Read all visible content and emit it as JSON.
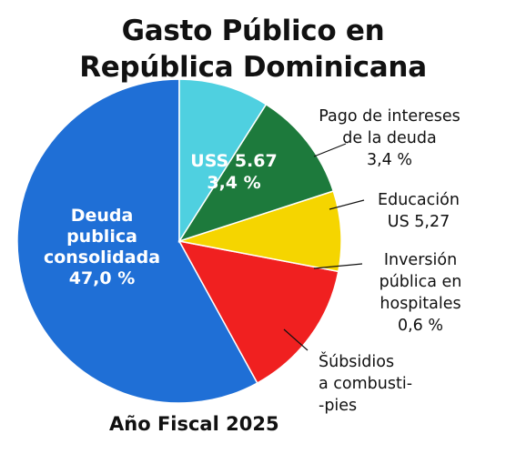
{
  "title_lines": [
    "Gasto Público en",
    "República Dominicana"
  ],
  "footer": "Año Fiscal 2025",
  "chart_data": {
    "type": "pie",
    "title": "Gasto Público en República Dominicana",
    "slices": [
      {
        "key": "deuda",
        "color": "#1f6fd6",
        "value_share": 0.58,
        "inside_label": [
          "Deuda",
          "publica",
          "consolidada",
          "47,0 %"
        ],
        "outside_label": []
      },
      {
        "key": "intereses",
        "color": "#f02020",
        "value_share": 0.14,
        "inside_label": [
          "USS 5.67",
          "3,4 %"
        ],
        "outside_label": [
          "Pago de intereses",
          "de la deuda",
          "3,4 %"
        ]
      },
      {
        "key": "educacion",
        "color": "#f5d500",
        "value_share": 0.08,
        "inside_label": [],
        "outside_label": [
          "Educación",
          "US 5,27"
        ]
      },
      {
        "key": "inversion",
        "color": "#1d7a3c",
        "value_share": 0.11,
        "inside_label": [],
        "outside_label": [
          "Inversión",
          "pública en",
          "hospitales",
          "0,6 %"
        ]
      },
      {
        "key": "subsidios",
        "color": "#4fd0e0",
        "value_share": 0.09,
        "inside_label": [],
        "outside_label": [
          "Šúbsidios",
          "a combusti-",
          "-pies"
        ]
      }
    ]
  }
}
